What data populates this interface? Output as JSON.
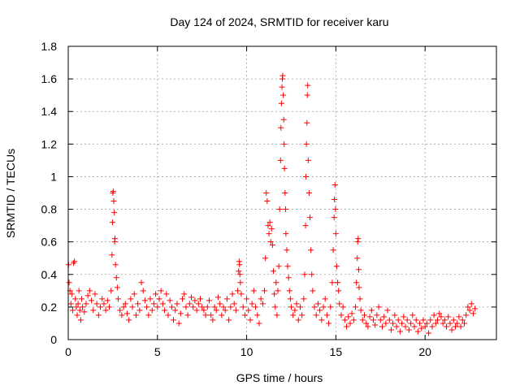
{
  "chart_data": {
    "type": "scatter",
    "title": "Day 124 of 2024, SRMTID for receiver karu",
    "xlabel": "GPS time / hours",
    "ylabel": "SRMTID / TECUs",
    "xlim": [
      0,
      24
    ],
    "ylim": [
      0,
      1.8
    ],
    "x_ticks": [
      0,
      5,
      10,
      15,
      20
    ],
    "x_tick_labels": [
      "0",
      "5",
      "10",
      "15",
      "20"
    ],
    "y_ticks": [
      0,
      0.2,
      0.4,
      0.6,
      0.8,
      1.0,
      1.2,
      1.4,
      1.6,
      1.8
    ],
    "y_tick_labels": [
      "0",
      "0.2",
      "0.4",
      "0.6",
      "0.8",
      "1",
      "1.2",
      "1.4",
      "1.6",
      "1.8"
    ],
    "grid": true,
    "marker": "+",
    "color": "#ff0000",
    "series": [
      {
        "name": "SRMTID",
        "points": [
          [
            0.02,
            0.46
          ],
          [
            0.05,
            0.35
          ],
          [
            0.1,
            0.3
          ],
          [
            0.15,
            0.22
          ],
          [
            0.2,
            0.28
          ],
          [
            0.25,
            0.18
          ],
          [
            0.3,
            0.47
          ],
          [
            0.35,
            0.48
          ],
          [
            0.4,
            0.25
          ],
          [
            0.45,
            0.2
          ],
          [
            0.5,
            0.15
          ],
          [
            0.55,
            0.22
          ],
          [
            0.6,
            0.3
          ],
          [
            0.65,
            0.18
          ],
          [
            0.7,
            0.12
          ],
          [
            0.75,
            0.25
          ],
          [
            0.8,
            0.2
          ],
          [
            0.9,
            0.17
          ],
          [
            1.0,
            0.22
          ],
          [
            1.1,
            0.27
          ],
          [
            1.2,
            0.3
          ],
          [
            1.3,
            0.24
          ],
          [
            1.4,
            0.18
          ],
          [
            1.5,
            0.28
          ],
          [
            1.6,
            0.22
          ],
          [
            1.7,
            0.15
          ],
          [
            1.8,
            0.2
          ],
          [
            1.9,
            0.25
          ],
          [
            2.0,
            0.22
          ],
          [
            2.1,
            0.18
          ],
          [
            2.2,
            0.24
          ],
          [
            2.3,
            0.2
          ],
          [
            2.4,
            0.3
          ],
          [
            2.45,
            0.52
          ],
          [
            2.48,
            0.72
          ],
          [
            2.5,
            0.9
          ],
          [
            2.52,
            0.91
          ],
          [
            2.55,
            0.85
          ],
          [
            2.58,
            0.78
          ],
          [
            2.6,
            0.6
          ],
          [
            2.62,
            0.62
          ],
          [
            2.65,
            0.46
          ],
          [
            2.7,
            0.38
          ],
          [
            2.75,
            0.32
          ],
          [
            2.8,
            0.25
          ],
          [
            2.9,
            0.18
          ],
          [
            3.0,
            0.15
          ],
          [
            3.1,
            0.2
          ],
          [
            3.2,
            0.22
          ],
          [
            3.3,
            0.16
          ],
          [
            3.4,
            0.12
          ],
          [
            3.5,
            0.25
          ],
          [
            3.6,
            0.2
          ],
          [
            3.7,
            0.28
          ],
          [
            3.8,
            0.15
          ],
          [
            3.9,
            0.22
          ],
          [
            4.0,
            0.18
          ],
          [
            4.1,
            0.35
          ],
          [
            4.2,
            0.3
          ],
          [
            4.3,
            0.24
          ],
          [
            4.4,
            0.2
          ],
          [
            4.5,
            0.15
          ],
          [
            4.6,
            0.25
          ],
          [
            4.7,
            0.18
          ],
          [
            4.8,
            0.22
          ],
          [
            4.9,
            0.28
          ],
          [
            5.0,
            0.2
          ],
          [
            5.1,
            0.25
          ],
          [
            5.2,
            0.3
          ],
          [
            5.3,
            0.22
          ],
          [
            5.4,
            0.18
          ],
          [
            5.5,
            0.28
          ],
          [
            5.6,
            0.15
          ],
          [
            5.7,
            0.24
          ],
          [
            5.8,
            0.2
          ],
          [
            5.9,
            0.12
          ],
          [
            6.0,
            0.18
          ],
          [
            6.1,
            0.22
          ],
          [
            6.2,
            0.1
          ],
          [
            6.3,
            0.16
          ],
          [
            6.4,
            0.25
          ],
          [
            6.5,
            0.28
          ],
          [
            6.6,
            0.2
          ],
          [
            6.7,
            0.15
          ],
          [
            6.8,
            0.22
          ],
          [
            6.9,
            0.26
          ],
          [
            7.0,
            0.2
          ],
          [
            7.1,
            0.24
          ],
          [
            7.2,
            0.18
          ],
          [
            7.3,
            0.22
          ],
          [
            7.4,
            0.25
          ],
          [
            7.5,
            0.2
          ],
          [
            7.6,
            0.18
          ],
          [
            7.7,
            0.15
          ],
          [
            7.8,
            0.2
          ],
          [
            7.9,
            0.24
          ],
          [
            8.0,
            0.15
          ],
          [
            8.1,
            0.12
          ],
          [
            8.2,
            0.2
          ],
          [
            8.3,
            0.18
          ],
          [
            8.4,
            0.26
          ],
          [
            8.5,
            0.22
          ],
          [
            8.6,
            0.15
          ],
          [
            8.7,
            0.2
          ],
          [
            8.8,
            0.18
          ],
          [
            8.9,
            0.25
          ],
          [
            9.0,
            0.12
          ],
          [
            9.1,
            0.2
          ],
          [
            9.2,
            0.28
          ],
          [
            9.3,
            0.22
          ],
          [
            9.4,
            0.18
          ],
          [
            9.5,
            0.3
          ],
          [
            9.55,
            0.42
          ],
          [
            9.58,
            0.48
          ],
          [
            9.6,
            0.46
          ],
          [
            9.62,
            0.4
          ],
          [
            9.65,
            0.35
          ],
          [
            9.7,
            0.28
          ],
          [
            9.8,
            0.2
          ],
          [
            9.9,
            0.15
          ],
          [
            10.0,
            0.25
          ],
          [
            10.1,
            0.18
          ],
          [
            10.2,
            0.12
          ],
          [
            10.3,
            0.22
          ],
          [
            10.4,
            0.3
          ],
          [
            10.5,
            0.2
          ],
          [
            10.6,
            0.15
          ],
          [
            10.7,
            0.1
          ],
          [
            10.8,
            0.25
          ],
          [
            10.9,
            0.22
          ],
          [
            11.0,
            0.3
          ],
          [
            11.05,
            0.5
          ],
          [
            11.1,
            0.9
          ],
          [
            11.15,
            0.85
          ],
          [
            11.2,
            0.7
          ],
          [
            11.25,
            0.65
          ],
          [
            11.3,
            0.72
          ],
          [
            11.35,
            0.6
          ],
          [
            11.4,
            0.68
          ],
          [
            11.45,
            0.58
          ],
          [
            11.5,
            0.42
          ],
          [
            11.55,
            0.28
          ],
          [
            11.6,
            0.2
          ],
          [
            11.65,
            0.35
          ],
          [
            11.7,
            0.15
          ],
          [
            11.75,
            0.3
          ],
          [
            11.8,
            0.45
          ],
          [
            11.85,
            0.8
          ],
          [
            11.9,
            1.1
          ],
          [
            11.92,
            1.3
          ],
          [
            11.95,
            1.45
          ],
          [
            11.98,
            1.55
          ],
          [
            12.0,
            1.6
          ],
          [
            12.02,
            1.62
          ],
          [
            12.05,
            1.5
          ],
          [
            12.08,
            1.35
          ],
          [
            12.1,
            1.2
          ],
          [
            12.12,
            1.05
          ],
          [
            12.15,
            0.9
          ],
          [
            12.18,
            0.8
          ],
          [
            12.2,
            0.65
          ],
          [
            12.25,
            0.55
          ],
          [
            12.3,
            0.45
          ],
          [
            12.35,
            0.38
          ],
          [
            12.4,
            0.3
          ],
          [
            12.45,
            0.25
          ],
          [
            12.5,
            0.2
          ],
          [
            12.6,
            0.15
          ],
          [
            12.7,
            0.18
          ],
          [
            12.8,
            0.22
          ],
          [
            12.9,
            0.12
          ],
          [
            13.0,
            0.2
          ],
          [
            13.1,
            0.15
          ],
          [
            13.2,
            0.25
          ],
          [
            13.25,
            0.4
          ],
          [
            13.3,
            0.7
          ],
          [
            13.32,
            1.0
          ],
          [
            13.35,
            1.2
          ],
          [
            13.38,
            1.33
          ],
          [
            13.4,
            1.5
          ],
          [
            13.42,
            1.56
          ],
          [
            13.45,
            1.1
          ],
          [
            13.5,
            0.9
          ],
          [
            13.55,
            0.75
          ],
          [
            13.6,
            0.55
          ],
          [
            13.65,
            0.4
          ],
          [
            13.7,
            0.3
          ],
          [
            13.8,
            0.2
          ],
          [
            13.9,
            0.15
          ],
          [
            14.0,
            0.22
          ],
          [
            14.1,
            0.18
          ],
          [
            14.2,
            0.12
          ],
          [
            14.3,
            0.2
          ],
          [
            14.4,
            0.25
          ],
          [
            14.5,
            0.15
          ],
          [
            14.6,
            0.1
          ],
          [
            14.7,
            0.2
          ],
          [
            14.8,
            0.35
          ],
          [
            14.85,
            0.55
          ],
          [
            14.9,
            0.75
          ],
          [
            14.92,
            0.86
          ],
          [
            14.95,
            0.95
          ],
          [
            14.98,
            0.8
          ],
          [
            15.0,
            0.65
          ],
          [
            15.05,
            0.45
          ],
          [
            15.1,
            0.35
          ],
          [
            15.15,
            0.3
          ],
          [
            15.2,
            0.22
          ],
          [
            15.3,
            0.15
          ],
          [
            15.4,
            0.2
          ],
          [
            15.5,
            0.12
          ],
          [
            15.6,
            0.08
          ],
          [
            15.7,
            0.14
          ],
          [
            15.8,
            0.1
          ],
          [
            15.9,
            0.16
          ],
          [
            16.0,
            0.12
          ],
          [
            16.1,
            0.2
          ],
          [
            16.15,
            0.35
          ],
          [
            16.2,
            0.5
          ],
          [
            16.22,
            0.6
          ],
          [
            16.25,
            0.62
          ],
          [
            16.28,
            0.43
          ],
          [
            16.3,
            0.32
          ],
          [
            16.35,
            0.25
          ],
          [
            16.4,
            0.18
          ],
          [
            16.5,
            0.12
          ],
          [
            16.6,
            0.15
          ],
          [
            16.7,
            0.1
          ],
          [
            16.8,
            0.08
          ],
          [
            16.9,
            0.14
          ],
          [
            17.0,
            0.18
          ],
          [
            17.1,
            0.12
          ],
          [
            17.2,
            0.09
          ],
          [
            17.3,
            0.15
          ],
          [
            17.4,
            0.2
          ],
          [
            17.5,
            0.12
          ],
          [
            17.6,
            0.08
          ],
          [
            17.7,
            0.14
          ],
          [
            17.8,
            0.1
          ],
          [
            17.9,
            0.18
          ],
          [
            18.0,
            0.12
          ],
          [
            18.1,
            0.06
          ],
          [
            18.2,
            0.1
          ],
          [
            18.3,
            0.15
          ],
          [
            18.4,
            0.08
          ],
          [
            18.5,
            0.12
          ],
          [
            18.6,
            0.05
          ],
          [
            18.7,
            0.1
          ],
          [
            18.8,
            0.14
          ],
          [
            18.9,
            0.08
          ],
          [
            19.0,
            0.12
          ],
          [
            19.1,
            0.06
          ],
          [
            19.2,
            0.1
          ],
          [
            19.3,
            0.15
          ],
          [
            19.4,
            0.08
          ],
          [
            19.5,
            0.12
          ],
          [
            19.6,
            0.05
          ],
          [
            19.7,
            0.1
          ],
          [
            19.8,
            0.07
          ],
          [
            19.9,
            0.12
          ],
          [
            20.0,
            0.08
          ],
          [
            20.1,
            0.1
          ],
          [
            20.2,
            0.04
          ],
          [
            20.3,
            0.12
          ],
          [
            20.4,
            0.08
          ],
          [
            20.5,
            0.15
          ],
          [
            20.6,
            0.1
          ],
          [
            20.7,
            0.12
          ],
          [
            20.8,
            0.16
          ],
          [
            20.9,
            0.14
          ],
          [
            21.0,
            0.1
          ],
          [
            21.1,
            0.12
          ],
          [
            21.2,
            0.08
          ],
          [
            21.3,
            0.14
          ],
          [
            21.4,
            0.1
          ],
          [
            21.5,
            0.06
          ],
          [
            21.6,
            0.12
          ],
          [
            21.7,
            0.08
          ],
          [
            21.8,
            0.1
          ],
          [
            21.9,
            0.14
          ],
          [
            22.0,
            0.08
          ],
          [
            22.1,
            0.12
          ],
          [
            22.2,
            0.1
          ],
          [
            22.3,
            0.15
          ],
          [
            22.4,
            0.2
          ],
          [
            22.5,
            0.18
          ],
          [
            22.6,
            0.22
          ],
          [
            22.7,
            0.16
          ],
          [
            22.8,
            0.19
          ]
        ]
      }
    ]
  }
}
